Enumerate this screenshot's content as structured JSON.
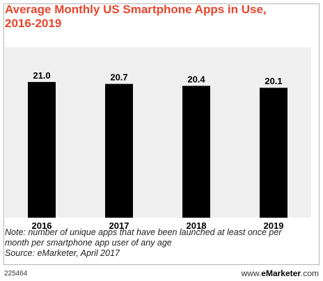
{
  "chart_data": {
    "type": "bar",
    "title_lines": [
      "Average Monthly US Smartphone Apps in Use,",
      "2016-2019"
    ],
    "categories": [
      "2016",
      "2017",
      "2018",
      "2019"
    ],
    "values": [
      21.0,
      20.7,
      20.4,
      20.1
    ],
    "value_labels": [
      "21.0",
      "20.7",
      "20.4",
      "20.1"
    ],
    "bar_color": "#000000",
    "plot_background": "#efefef",
    "title_color": "#e8452c",
    "ylim": [
      0,
      24
    ],
    "grid": false,
    "legend": "none"
  },
  "notes": {
    "note_line1": "Note: number of unique apps that have been launched at least once per",
    "note_line2": "month per smartphone app user of any age",
    "source": "Source: eMarketer, April 2017"
  },
  "footer": {
    "chart_id": "225464",
    "brand_prefix": "www.",
    "brand_bold": "eMarketer",
    "brand_suffix": ".com"
  }
}
